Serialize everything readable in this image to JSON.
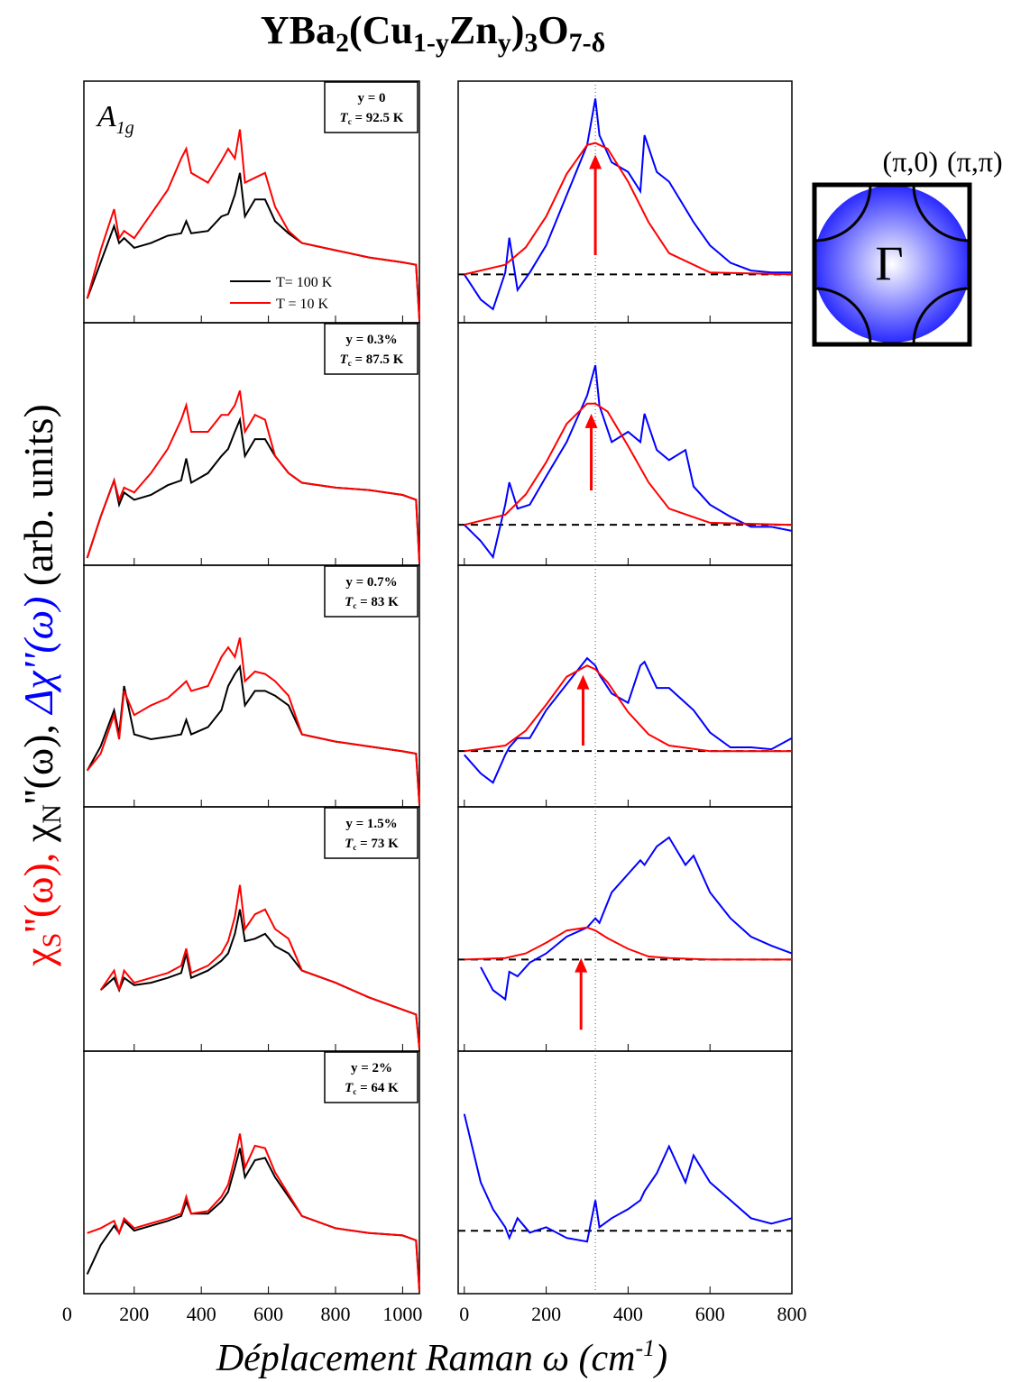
{
  "chart_data": [
    {
      "type": "line",
      "title": [
        "YBa",
        "2",
        "(Cu",
        "1-y",
        "Zn",
        "y",
        ")",
        "3",
        "O",
        "7-δ"
      ],
      "ylabel": [
        "χ",
        "S",
        "''(ω), ",
        "χ",
        "N",
        "''(ω), ",
        "Δχ''(ω)",
        " (arb. units)"
      ],
      "xlabel": [
        "Déplacement Raman ω (cm",
        "-1",
        ")"
      ],
      "annotation": [
        "A",
        "1g"
      ],
      "tc_symbol": [
        "T",
        "c"
      ],
      "legend": [
        "T= 100 K",
        "T = 10 K"
      ],
      "xlim": [
        50,
        1050
      ],
      "xticks": [
        0,
        200,
        400,
        600,
        800,
        1000
      ],
      "ylim": [
        0,
        1
      ],
      "x": [
        60,
        100,
        140,
        155,
        170,
        200,
        250,
        300,
        340,
        355,
        370,
        420,
        460,
        480,
        500,
        515,
        530,
        560,
        590,
        620,
        660,
        700,
        800,
        900,
        1000,
        1040,
        1050
      ],
      "panels": [
        {
          "label": "y = 0",
          "tc": " = 92.5 K",
          "series": [
            {
              "color": "#000000",
              "values": [
                0.1,
                0.25,
                0.4,
                0.33,
                0.35,
                0.31,
                0.33,
                0.36,
                0.37,
                0.42,
                0.37,
                0.38,
                0.44,
                0.45,
                0.53,
                0.62,
                0.44,
                0.51,
                0.51,
                0.42,
                0.37,
                0.33,
                0.3,
                0.27,
                0.25,
                0.24,
                0.01
              ]
            },
            {
              "color": "#ff0000",
              "values": [
                0.1,
                0.3,
                0.47,
                0.35,
                0.38,
                0.35,
                0.45,
                0.55,
                0.68,
                0.72,
                0.62,
                0.58,
                0.67,
                0.72,
                0.68,
                0.8,
                0.58,
                0.6,
                0.62,
                0.48,
                0.38,
                0.33,
                0.3,
                0.27,
                0.25,
                0.24,
                0.01
              ]
            }
          ]
        },
        {
          "label": "y = 0.3%",
          "tc": " = 87.5 K",
          "series": [
            {
              "color": "#000000",
              "values": [
                0.03,
                0.2,
                0.35,
                0.25,
                0.3,
                0.27,
                0.29,
                0.33,
                0.35,
                0.44,
                0.34,
                0.38,
                0.45,
                0.48,
                0.55,
                0.6,
                0.45,
                0.52,
                0.52,
                0.45,
                0.38,
                0.34,
                0.32,
                0.31,
                0.29,
                0.27,
                0.01
              ]
            },
            {
              "color": "#ff0000",
              "values": [
                0.03,
                0.2,
                0.35,
                0.27,
                0.32,
                0.3,
                0.38,
                0.48,
                0.6,
                0.66,
                0.55,
                0.55,
                0.62,
                0.62,
                0.66,
                0.72,
                0.55,
                0.62,
                0.6,
                0.45,
                0.38,
                0.34,
                0.32,
                0.31,
                0.29,
                0.27,
                0.01
              ]
            }
          ]
        },
        {
          "label": "y = 0.7%",
          "tc": " = 83 K",
          "series": [
            {
              "color": "#000000",
              "values": [
                0.15,
                0.25,
                0.4,
                0.3,
                0.5,
                0.3,
                0.28,
                0.29,
                0.3,
                0.36,
                0.3,
                0.33,
                0.4,
                0.5,
                0.55,
                0.58,
                0.42,
                0.48,
                0.48,
                0.46,
                0.42,
                0.3,
                0.27,
                0.25,
                0.23,
                0.22,
                0.01
              ]
            },
            {
              "color": "#ff0000",
              "values": [
                0.15,
                0.22,
                0.38,
                0.28,
                0.48,
                0.38,
                0.42,
                0.45,
                0.5,
                0.52,
                0.48,
                0.5,
                0.62,
                0.66,
                0.62,
                0.7,
                0.52,
                0.56,
                0.55,
                0.52,
                0.46,
                0.3,
                0.27,
                0.25,
                0.23,
                0.22,
                0.01
              ]
            }
          ]
        },
        {
          "label": "y = 1.5%",
          "tc": " = 73 K",
          "series": [
            {
              "color": "#000000",
              "values": [
                null,
                0.25,
                0.3,
                0.25,
                0.3,
                0.27,
                0.28,
                0.3,
                0.32,
                0.4,
                0.3,
                0.33,
                0.37,
                0.4,
                0.48,
                0.58,
                0.45,
                0.46,
                0.48,
                0.43,
                0.4,
                0.33,
                0.28,
                0.22,
                0.17,
                0.15,
                0.01
              ]
            },
            {
              "color": "#ff0000",
              "values": [
                null,
                0.25,
                0.33,
                0.25,
                0.33,
                0.28,
                0.3,
                0.32,
                0.35,
                0.42,
                0.32,
                0.35,
                0.4,
                0.45,
                0.55,
                0.68,
                0.5,
                0.56,
                0.58,
                0.5,
                0.46,
                0.33,
                0.28,
                0.22,
                0.17,
                0.15,
                0.01
              ]
            }
          ]
        },
        {
          "label": "y = 2%",
          "tc": " = 64 K",
          "series": [
            {
              "color": "#000000",
              "values": [
                0.08,
                0.2,
                0.28,
                0.25,
                0.3,
                0.26,
                0.28,
                0.3,
                0.32,
                0.38,
                0.33,
                0.33,
                0.38,
                0.42,
                0.52,
                0.6,
                0.48,
                0.55,
                0.56,
                0.48,
                0.4,
                0.32,
                0.27,
                0.25,
                0.24,
                0.22,
                0.01
              ]
            },
            {
              "color": "#ff0000",
              "values": [
                0.25,
                0.27,
                0.3,
                0.25,
                0.31,
                0.27,
                0.29,
                0.31,
                0.33,
                0.4,
                0.33,
                0.34,
                0.4,
                0.45,
                0.56,
                0.66,
                0.52,
                0.61,
                0.6,
                0.5,
                0.41,
                0.32,
                0.27,
                0.25,
                0.24,
                0.22,
                0.01
              ]
            }
          ]
        }
      ]
    },
    {
      "type": "line",
      "xlim": [
        -15,
        800
      ],
      "xticks": [
        0,
        200,
        400,
        600,
        800
      ],
      "marker_x": 320,
      "x": [
        0,
        40,
        70,
        100,
        110,
        130,
        160,
        200,
        250,
        300,
        320,
        330,
        360,
        400,
        430,
        440,
        470,
        500,
        540,
        560,
        600,
        650,
        700,
        750,
        800
      ],
      "fit_x": [
        0,
        100,
        150,
        200,
        250,
        300,
        320,
        350,
        400,
        450,
        500,
        600,
        800
      ],
      "panels": [
        {
          "ylim": [
            -0.25,
            1
          ],
          "arrow": {
            "x": 320,
            "y": [
              0.1,
              0.62
            ]
          },
          "series": [
            {
              "color": "#0000ff",
              "values": [
                0,
                -0.13,
                -0.18,
                0.01,
                0.19,
                -0.08,
                0.01,
                0.15,
                0.41,
                0.67,
                0.91,
                0.72,
                0.58,
                0.53,
                0.43,
                0.72,
                0.53,
                0.48,
                0.34,
                0.27,
                0.15,
                0.06,
                0.02,
                0.01,
                0.01
              ]
            },
            {
              "color": "#ff0000",
              "values": [
                0,
                0.05,
                0.14,
                0.3,
                0.52,
                0.67,
                0.68,
                0.65,
                0.48,
                0.27,
                0.11,
                0.01,
                0
              ]
            }
          ]
        },
        {
          "ylim": [
            -0.2,
            1
          ],
          "arrow": {
            "x": 310,
            "y": [
              0.17,
              0.55
            ]
          },
          "series": [
            {
              "color": "#0000ff",
              "values": [
                0,
                -0.08,
                -0.16,
                0.1,
                0.21,
                0.08,
                0.1,
                0.24,
                0.41,
                0.64,
                0.79,
                0.59,
                0.41,
                0.46,
                0.41,
                0.55,
                0.37,
                0.32,
                0.37,
                0.19,
                0.1,
                0.04,
                -0.01,
                -0.01,
                -0.03
              ]
            },
            {
              "color": "#ff0000",
              "values": [
                0,
                0.05,
                0.15,
                0.31,
                0.5,
                0.6,
                0.6,
                0.56,
                0.39,
                0.21,
                0.08,
                0.01,
                0
              ]
            }
          ]
        },
        {
          "ylim": [
            -0.3,
            1
          ],
          "arrow": {
            "x": 290,
            "y": [
              0.03,
              0.41
            ]
          },
          "series": [
            {
              "color": "#0000ff",
              "values": [
                -0.02,
                -0.12,
                -0.17,
                -0.02,
                0.02,
                0.07,
                0.07,
                0.22,
                0.36,
                0.5,
                0.46,
                0.41,
                0.31,
                0.26,
                0.46,
                0.48,
                0.34,
                0.34,
                0.26,
                0.22,
                0.1,
                0.02,
                0.02,
                0.01,
                0.07
              ]
            },
            {
              "color": "#ff0000",
              "values": [
                0,
                0.03,
                0.11,
                0.25,
                0.4,
                0.46,
                0.44,
                0.37,
                0.21,
                0.09,
                0.03,
                0,
                0
              ]
            }
          ]
        },
        {
          "ylim": [
            -0.6,
            1
          ],
          "arrow": {
            "x": 285,
            "y": [
              -0.46,
              0.01
            ]
          },
          "series": [
            {
              "color": "#0000ff",
              "values": [
                null,
                -0.05,
                -0.2,
                -0.26,
                -0.08,
                -0.11,
                -0.02,
                0.04,
                0.15,
                0.21,
                0.27,
                0.24,
                0.44,
                0.56,
                0.65,
                0.62,
                0.74,
                0.8,
                0.62,
                0.68,
                0.44,
                0.27,
                0.15,
                0.09,
                0.04
              ]
            },
            {
              "color": "#ff0000",
              "values": [
                0,
                0.01,
                0.04,
                0.11,
                0.19,
                0.21,
                0.19,
                0.14,
                0.07,
                0.02,
                0.01,
                0,
                0
              ]
            }
          ]
        },
        {
          "ylim": [
            -0.35,
            1
          ],
          "series": [
            {
              "color": "#0000ff",
              "values": [
                0.65,
                0.27,
                0.12,
                0.02,
                -0.04,
                0.07,
                -0.01,
                0.02,
                -0.04,
                -0.06,
                0.17,
                0.02,
                0.07,
                0.12,
                0.17,
                0.22,
                0.32,
                0.47,
                0.27,
                0.42,
                0.27,
                0.17,
                0.07,
                0.04,
                0.07
              ]
            }
          ]
        }
      ]
    },
    {
      "type": "diagram",
      "labels": [
        "(π,0)",
        "(π,π)"
      ],
      "center": "Γ"
    }
  ]
}
